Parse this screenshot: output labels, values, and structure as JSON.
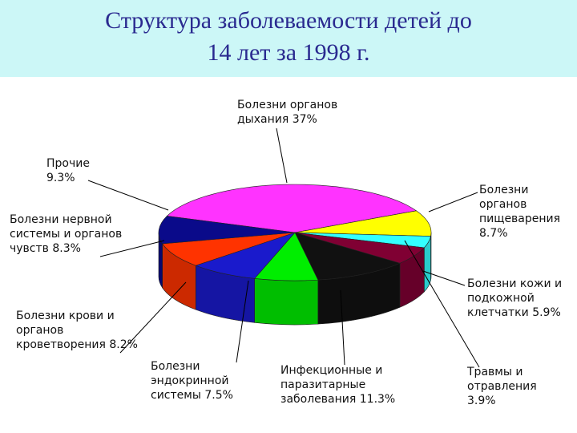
{
  "chart_data": {
    "type": "pie3d",
    "title": "Структура заболеваемости детей до 14 лет за 1998 г.",
    "categories": [
      "Болезни органов дыхания",
      "Болезни органов пищеварения",
      "Травмы и отравления",
      "Болезни кожи и подкожной клетчатки",
      "Инфекционные и паразитарные заболевания",
      "Болезни эндокринной системы",
      "Болезни крови и органов кроветворения",
      "Болезни нервной системы и органов чувств",
      "Прочие"
    ],
    "values": [
      37,
      8.7,
      3.9,
      5.9,
      11.3,
      7.5,
      8.2,
      8.3,
      9.3
    ],
    "value_labels": [
      "37%",
      "8.7%",
      "3.9%",
      "5.9%",
      "11.3%",
      "7.5%",
      "8.2%",
      "8.3%",
      "9.3%"
    ],
    "colors": [
      "#ff33ff",
      "#ffff00",
      "#33ffff",
      "#800033",
      "#111111",
      "#00ee00",
      "#1a1acc",
      "#ff3300",
      "#0a0a8a"
    ]
  }
}
